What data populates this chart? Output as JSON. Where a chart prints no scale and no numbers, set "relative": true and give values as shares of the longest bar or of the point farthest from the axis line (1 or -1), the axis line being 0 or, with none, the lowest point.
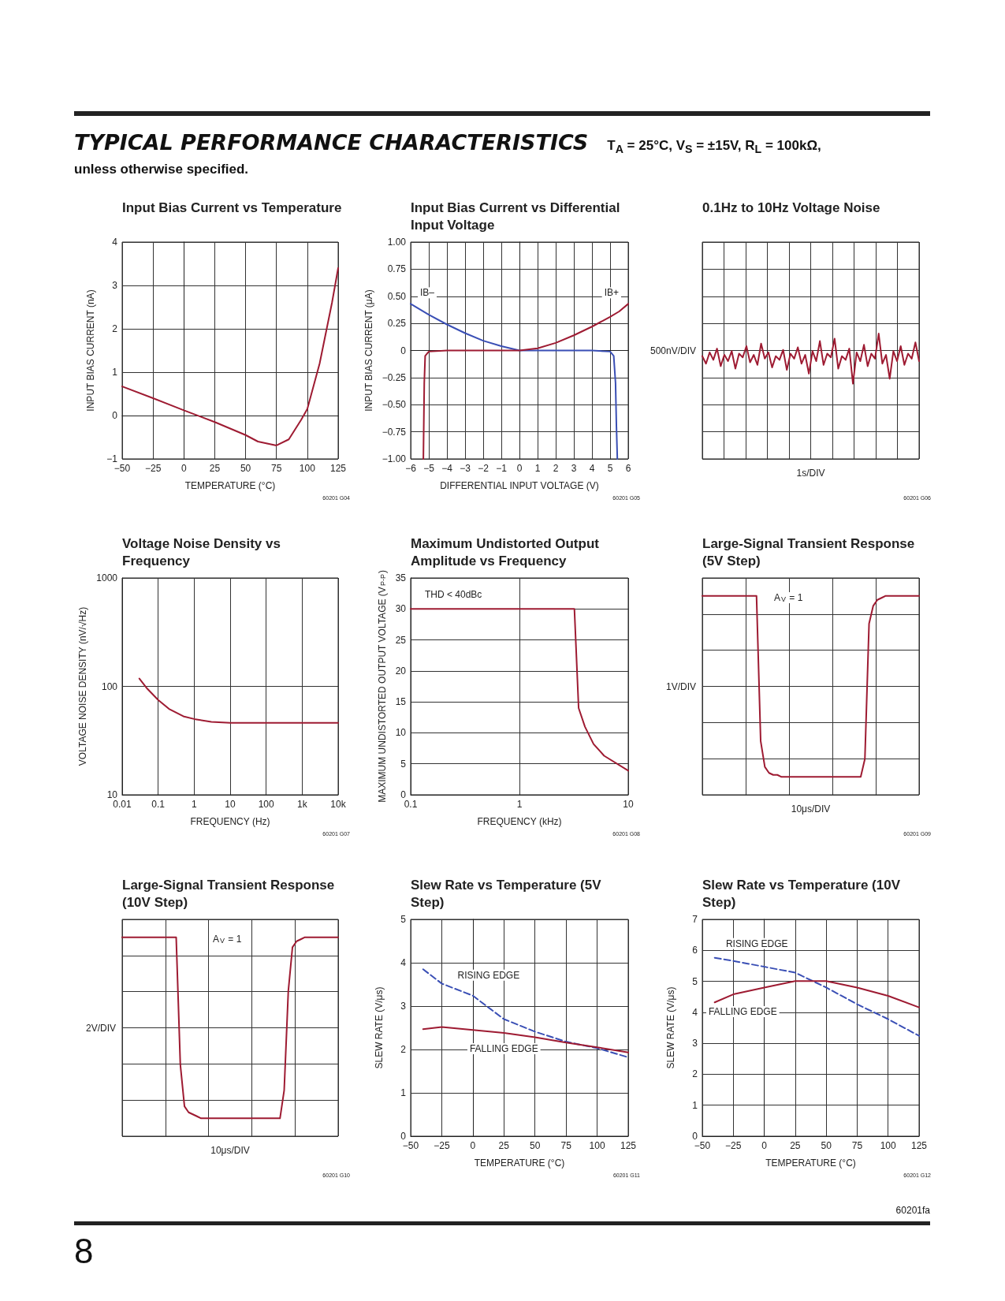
{
  "chart_data": [
    {
      "type": "other",
      "title": "TYPICAL PERFORMANCE CHARACTERISTICS",
      "subtitle": "T$_{A}$ = 25°C, V$_{S}$ = ±15V, R$_{L}$ = 100kΩ, unless otherwise specified.",
      "annotations": [
        "8",
        "60201fa"
      ]
    },
    {
      "type": "line",
      "title": "Input Bias Current vs Temperature",
      "xlabel": "TEMPERATURE (°C)",
      "ylabel": "INPUT BIAS CURRENT (nA)",
      "annotations": [
        "60201 G04"
      ],
      "x": [
        -50,
        -25,
        0,
        25,
        50,
        60,
        75,
        85,
        95,
        100,
        110,
        120,
        125
      ],
      "series": [
        {
          "color": "#9e1b32",
          "values": [
            0.67,
            0.4,
            0.12,
            -0.15,
            -0.45,
            -0.6,
            -0.69,
            -0.55,
            -0.1,
            0.15,
            1.2,
            2.6,
            3.4
          ]
        }
      ],
      "xlim": [
        -50,
        125
      ],
      "xticks": [
        {
          "value": -50,
          "label": "−50"
        },
        {
          "value": -25,
          "label": "−25"
        },
        0,
        25,
        50,
        75,
        100,
        125
      ],
      "ylim": [
        -1,
        4
      ],
      "yticks": [
        {
          "value": -1,
          "label": "−1"
        },
        0,
        1,
        2,
        3,
        4
      ],
      "grid": true,
      "marker": "none",
      "line_style": "solid"
    },
    {
      "type": "line",
      "title": "Input Bias Current vs Differential Input Voltage",
      "xlabel": "DIFFERENTIAL INPUT VOLTAGE (V)",
      "ylabel": "INPUT BIAS CURRENT (μA)",
      "annotations": [
        "60201 G05"
      ],
      "series": [
        {
          "name": "IB–",
          "color": "#3a4fb5",
          "x": [
            -6,
            -5,
            -4,
            -3,
            -2,
            -1,
            0,
            1,
            2,
            3,
            4,
            5,
            5.2,
            5.3,
            5.35,
            5.4
          ],
          "values": [
            0.43,
            0.33,
            0.24,
            0.16,
            0.09,
            0.04,
            0,
            0,
            0,
            0,
            0,
            -0.01,
            -0.05,
            -0.3,
            -0.7,
            -1
          ]
        },
        {
          "name": "IB+",
          "color": "#9e1b32",
          "x": [
            -5.3,
            -5.25,
            -5.2,
            -5,
            -4,
            -2,
            0,
            1,
            2,
            3,
            4,
            5,
            5.5,
            6
          ],
          "values": [
            -1,
            -0.3,
            -0.05,
            -0.01,
            0,
            0,
            0,
            0.02,
            0.07,
            0.14,
            0.22,
            0.31,
            0.36,
            0.43
          ]
        }
      ],
      "xlim": [
        -6,
        6
      ],
      "xticks": [
        {
          "value": -6,
          "label": "−6"
        },
        {
          "value": -5,
          "label": "−5"
        },
        {
          "value": -4,
          "label": "−4"
        },
        {
          "value": -3,
          "label": "−3"
        },
        {
          "value": -2,
          "label": "−2"
        },
        {
          "value": -1,
          "label": "−1"
        },
        0,
        1,
        2,
        3,
        4,
        5,
        6
      ],
      "ylim": [
        -1,
        1
      ],
      "yticks": [
        {
          "value": -1,
          "label": "−1.00"
        },
        {
          "value": -0.75,
          "label": "−0.75"
        },
        {
          "value": -0.5,
          "label": "−0.50"
        },
        {
          "value": -0.25,
          "label": "−0.25"
        },
        0,
        0.25,
        {
          "value": 0.5,
          "label": "0.50"
        },
        0.75,
        {
          "value": 1,
          "label": "1.00"
        }
      ],
      "grid": true,
      "marker": "none",
      "line_style": "solid"
    },
    {
      "type": "line",
      "title": "0.1Hz to 10Hz Voltage Noise",
      "xlabel": "1s/DIV",
      "ylabel": "500nV/DIV",
      "annotations": [
        "60201 G06"
      ],
      "relative": true,
      "categories": [
        null,
        null,
        null,
        null,
        null,
        null,
        null,
        null,
        null,
        null,
        null,
        null,
        null,
        null,
        null,
        null,
        null,
        null,
        null,
        null,
        null,
        null,
        null,
        null,
        null,
        null,
        null,
        null,
        null,
        null,
        null,
        null,
        null,
        null,
        null,
        null,
        null,
        null,
        null,
        null,
        null,
        null,
        null,
        null,
        null,
        null,
        null,
        null,
        null,
        null,
        null,
        null,
        null,
        null,
        null,
        null,
        null,
        null,
        null,
        null
      ],
      "series": [
        {
          "color": "#9e1b32",
          "values": [
            0.82,
            0.76,
            0.85,
            0.79,
            0.88,
            0.74,
            0.83,
            0.78,
            0.86,
            0.72,
            0.84,
            0.81,
            0.9,
            0.77,
            0.83,
            0.75,
            0.92,
            0.8,
            0.85,
            0.73,
            0.82,
            0.79,
            0.87,
            0.71,
            0.84,
            0.8,
            0.89,
            0.76,
            0.83,
            0.68,
            0.86,
            0.78,
            0.94,
            0.75,
            0.84,
            0.81,
            0.96,
            0.72,
            0.82,
            0.79,
            0.88,
            0.6,
            0.85,
            0.78,
            0.91,
            0.74,
            0.84,
            0.8,
            1,
            0.76,
            0.83,
            0.64,
            0.86,
            0.78,
            0.9,
            0.75,
            0.84,
            0.8,
            0.93,
            0.78
          ]
        }
      ],
      "grid": true,
      "marker": "none",
      "line_style": "solid"
    },
    {
      "type": "line",
      "title": "Voltage Noise Density vs Frequency",
      "xlabel": "FREQUENCY (Hz)",
      "ylabel": "VOLTAGE NOISE DENSITY (nV/√Hz)",
      "annotations": [
        "60201 G07"
      ],
      "log": "xy",
      "x": [
        0.03,
        0.05,
        0.1,
        0.2,
        0.5,
        1,
        3,
        10,
        100,
        10000
      ],
      "series": [
        {
          "color": "#9e1b32",
          "values": [
            118,
            95,
            75,
            62,
            53,
            50,
            47,
            46,
            46,
            46
          ]
        }
      ],
      "xlim": [
        0.01,
        10000
      ],
      "xticks": [
        0.01,
        0.1,
        1,
        10,
        100,
        {
          "value": 1000,
          "label": "1k"
        },
        {
          "value": 10000,
          "label": "10k"
        }
      ],
      "ylim": [
        10,
        1000
      ],
      "yticks": [
        10,
        100,
        1000
      ],
      "grid": true,
      "marker": "none",
      "line_style": "solid"
    },
    {
      "type": "line",
      "title": "Maximum Undistorted Output Amplitude vs Frequency",
      "xlabel": "FREQUENCY (kHz)",
      "ylabel": "MAXIMUM UNDISTORTED OUTPUT VOLTAGE (V$_{P-P}$)",
      "annotations": [
        "THD < 40dBc",
        "60201 G08"
      ],
      "log": "x",
      "x": [
        0.1,
        3.2,
        3.5,
        4,
        4.8,
        6,
        10
      ],
      "series": [
        {
          "color": "#9e1b32",
          "values": [
            30,
            30,
            14,
            11,
            8.2,
            6.3,
            3.9
          ]
        }
      ],
      "xlim": [
        0.1,
        10
      ],
      "xticks": [
        0.1,
        1,
        10
      ],
      "ylim": [
        0,
        35
      ],
      "yticks": [
        0,
        5,
        10,
        15,
        20,
        25,
        30,
        35
      ],
      "grid": true,
      "marker": "none",
      "line_style": "solid"
    },
    {
      "type": "line",
      "title": "Large-Signal Transient Response (5V Step)",
      "xlabel": "10μs/DIV",
      "ylabel": "1V/DIV",
      "annotations": [
        "A$_{V}$ = 1",
        "60201 G09"
      ],
      "relative": true,
      "categories": [
        null,
        null,
        null,
        null,
        null,
        null,
        null,
        null,
        null,
        null,
        null,
        null,
        null,
        null,
        null,
        null,
        null,
        null,
        null,
        null,
        null,
        null,
        null,
        null,
        null,
        null,
        null,
        null,
        null,
        null,
        null,
        null,
        null,
        null,
        null,
        null,
        null,
        null,
        null,
        null,
        null,
        null,
        null,
        null,
        null,
        null,
        null,
        null,
        null,
        null,
        null,
        null,
        null
      ],
      "series": [
        {
          "color": "#9e1b32",
          "values": [
            1,
            1,
            1,
            1,
            1,
            1,
            1,
            1,
            1,
            1,
            1,
            1,
            1,
            1,
            0.27,
            0.14,
            0.11,
            0.1,
            0.1,
            0.09,
            0.09,
            0.09,
            0.09,
            0.09,
            0.09,
            0.09,
            0.09,
            0.09,
            0.09,
            0.09,
            0.09,
            0.09,
            0.09,
            0.09,
            0.09,
            0.09,
            0.09,
            0.09,
            0.09,
            0.18,
            0.86,
            0.95,
            0.98,
            0.99,
            1,
            1,
            1,
            1,
            1,
            1,
            1,
            1,
            1
          ]
        }
      ],
      "grid": true,
      "marker": "none",
      "line_style": "solid"
    },
    {
      "type": "line",
      "title": "Large-Signal Transient Response (10V Step)",
      "xlabel": "10μs/DIV",
      "ylabel": "2V/DIV",
      "annotations": [
        "A$_{V}$ = 1",
        "60201 G10"
      ],
      "relative": true,
      "categories": [
        null,
        null,
        null,
        null,
        null,
        null,
        null,
        null,
        null,
        null,
        null,
        null,
        null,
        null,
        null,
        null,
        null,
        null,
        null,
        null,
        null,
        null,
        null,
        null,
        null,
        null,
        null,
        null,
        null,
        null,
        null,
        null,
        null,
        null,
        null,
        null,
        null,
        null,
        null,
        null,
        null,
        null,
        null,
        null,
        null,
        null,
        null,
        null,
        null,
        null,
        null,
        null,
        null
      ],
      "series": [
        {
          "color": "#9e1b32",
          "values": [
            1,
            1,
            1,
            1,
            1,
            1,
            1,
            1,
            1,
            1,
            1,
            1,
            1,
            1,
            0.36,
            0.15,
            0.12,
            0.11,
            0.1,
            0.09,
            0.09,
            0.09,
            0.09,
            0.09,
            0.09,
            0.09,
            0.09,
            0.09,
            0.09,
            0.09,
            0.09,
            0.09,
            0.09,
            0.09,
            0.09,
            0.09,
            0.09,
            0.09,
            0.09,
            0.23,
            0.73,
            0.95,
            0.98,
            0.99,
            1,
            1,
            1,
            1,
            1,
            1,
            1,
            1,
            1
          ]
        }
      ],
      "grid": true,
      "marker": "none",
      "line_style": "solid"
    },
    {
      "type": "line",
      "title": "Slew Rate vs Temperature (5V Step)",
      "xlabel": "TEMPERATURE (°C)",
      "ylabel": "SLEW RATE (V/μs)",
      "annotations": [
        "60201 G11"
      ],
      "x": [
        -40,
        -25,
        0,
        25,
        50,
        75,
        100,
        125
      ],
      "series": [
        {
          "name": "RISING EDGE",
          "color": "#3a4fb5",
          "line_style": "dashed",
          "values": [
            3.85,
            3.52,
            3.24,
            2.7,
            2.41,
            2.18,
            2.03,
            1.82
          ]
        },
        {
          "name": "FALLING EDGE",
          "color": "#9e1b32",
          "values": [
            2.47,
            2.52,
            2.45,
            2.38,
            2.28,
            2.16,
            2.05,
            1.93
          ]
        }
      ],
      "xlim": [
        -50,
        125
      ],
      "xticks": [
        {
          "value": -50,
          "label": "−50"
        },
        {
          "value": -25,
          "label": "−25"
        },
        0,
        25,
        50,
        75,
        100,
        125
      ],
      "ylim": [
        0,
        5
      ],
      "yticks": [
        0,
        1,
        2,
        3,
        4,
        5
      ],
      "grid": true,
      "marker": "none",
      "line_style": "solid"
    },
    {
      "type": "line",
      "title": "Slew Rate vs Temperature (10V Step)",
      "xlabel": "TEMPERATURE (°C)",
      "ylabel": "SLEW RATE (V/μs)",
      "annotations": [
        "60201 G12"
      ],
      "x": [
        -40,
        -25,
        0,
        25,
        50,
        75,
        100,
        125
      ],
      "series": [
        {
          "name": "RISING EDGE",
          "color": "#3a4fb5",
          "line_style": "dashed",
          "values": [
            5.76,
            5.66,
            5.47,
            5.28,
            4.8,
            4.26,
            3.78,
            3.24
          ]
        },
        {
          "name": "FALLING EDGE",
          "color": "#9e1b32",
          "values": [
            4.32,
            4.58,
            4.8,
            5.01,
            5.01,
            4.8,
            4.53,
            4.16
          ]
        }
      ],
      "xlim": [
        -50,
        125
      ],
      "xticks": [
        {
          "value": -50,
          "label": "−50"
        },
        {
          "value": -25,
          "label": "−25"
        },
        0,
        25,
        50,
        75,
        100,
        125
      ],
      "ylim": [
        0,
        7
      ],
      "yticks": [
        0,
        1,
        2,
        3,
        4,
        5,
        6,
        7
      ],
      "grid": true,
      "marker": "none",
      "line_style": "solid"
    }
  ]
}
